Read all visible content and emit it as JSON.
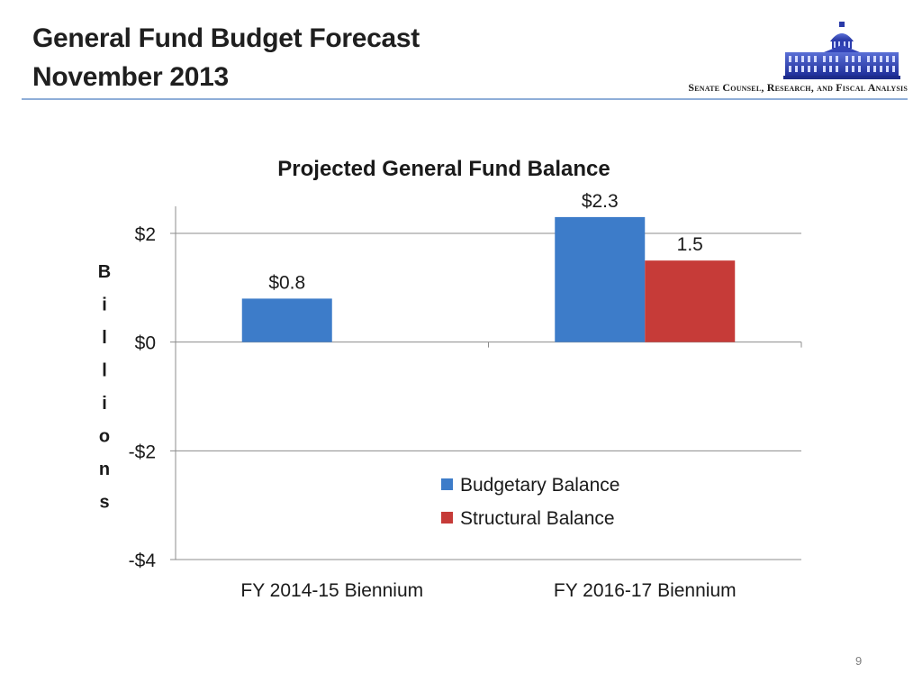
{
  "header": {
    "title_line1": "General Fund Budget Forecast",
    "title_line2": "November 2013",
    "organization": "Senate Counsel, Research, and Fiscal Analysis",
    "logo_icon": "capitol-building-icon"
  },
  "page_number": "9",
  "colors": {
    "budgetary": "#3d7cc9",
    "structural": "#c63b38",
    "header_rule": "#8faed8"
  },
  "chart_data": {
    "type": "bar",
    "title": "Projected General Fund Balance",
    "ylabel": "Billions",
    "xlabel": "",
    "ylim": [
      -4,
      2.8
    ],
    "yticks": [
      2,
      0,
      -2,
      -4
    ],
    "ytick_labels": [
      "$2",
      "$0",
      "-$2",
      "-$4"
    ],
    "grid": true,
    "categories": [
      "FY 2014-15 Biennium",
      "FY 2016-17 Biennium"
    ],
    "legend_position": "center-right",
    "series": [
      {
        "name": "Budgetary Balance",
        "values": [
          0.8,
          2.3
        ],
        "labels": [
          "$0.8",
          "$2.3"
        ]
      },
      {
        "name": "Structural Balance",
        "values": [
          null,
          1.5
        ],
        "labels": [
          "",
          "1.5"
        ]
      }
    ]
  }
}
